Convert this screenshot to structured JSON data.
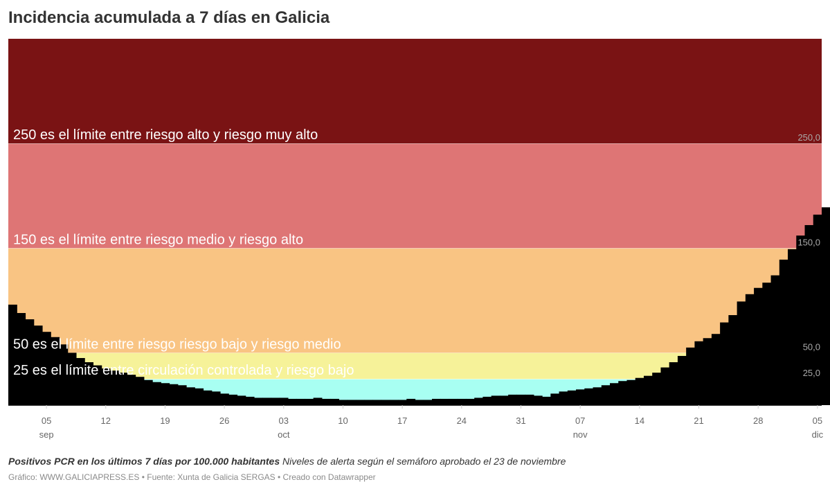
{
  "title": "Incidencia acumulada a 7 días en Galicia",
  "footer": {
    "description_bold": "Positivos PCR en los últimos 7 días por 100.000 habitantes",
    "description_rest": "Niveles de alerta según el semáforo aprobado el 23 de noviembre",
    "credits": "Gráfico: WWW.GALICIAPRESS.ES • Fuente: Xunta de Galicia SERGAS • Creado con Datawrapper"
  },
  "chart_data": {
    "type": "area",
    "title": "Incidencia acumulada a 7 días en Galicia",
    "xlabel": "",
    "ylabel": "",
    "ylim": [
      0,
      350
    ],
    "grid": false,
    "bands": [
      {
        "from": 0,
        "to": 25,
        "color": "#a8fff2",
        "label": "25 es el límite entre circulación controlada y riesgo bajo",
        "tick": "25,0"
      },
      {
        "from": 25,
        "to": 50,
        "color": "#f6f299",
        "label": "50 es el límite entre riesgo riesgo bajo y riesgo medio",
        "tick": "50,0"
      },
      {
        "from": 50,
        "to": 150,
        "color": "#f9c483",
        "label": "150 es el límite entre riesgo medio y riesgo alto",
        "tick": "150,0"
      },
      {
        "from": 150,
        "to": 250,
        "color": "#de7575",
        "label": "250 es el límite entre riesgo alto y riesgo muy alto",
        "tick": "250,0"
      },
      {
        "from": 250,
        "to": 350,
        "color": "#7a1314",
        "label": "",
        "tick": ""
      }
    ],
    "x_ticks": [
      {
        "day": 5,
        "label": "05",
        "sub": "sep"
      },
      {
        "day": 12,
        "label": "12",
        "sub": ""
      },
      {
        "day": 19,
        "label": "19",
        "sub": ""
      },
      {
        "day": 26,
        "label": "26",
        "sub": ""
      },
      {
        "day": 33,
        "label": "03",
        "sub": "oct"
      },
      {
        "day": 40,
        "label": "10",
        "sub": ""
      },
      {
        "day": 47,
        "label": "17",
        "sub": ""
      },
      {
        "day": 54,
        "label": "24",
        "sub": ""
      },
      {
        "day": 61,
        "label": "31",
        "sub": ""
      },
      {
        "day": 68,
        "label": "07",
        "sub": "nov"
      },
      {
        "day": 75,
        "label": "14",
        "sub": ""
      },
      {
        "day": 82,
        "label": "21",
        "sub": ""
      },
      {
        "day": 89,
        "label": "28",
        "sub": ""
      },
      {
        "day": 96,
        "label": "05",
        "sub": "dic"
      }
    ],
    "x_start_day": 1,
    "x_end_day": 97,
    "values": [
      96,
      88,
      82,
      76,
      70,
      65,
      58,
      50,
      45,
      41,
      38,
      35,
      33,
      31,
      29,
      27,
      24,
      22,
      21,
      20,
      19,
      17,
      16,
      14,
      13,
      11,
      10,
      9,
      8,
      7,
      7,
      7,
      7,
      6,
      6,
      6,
      7,
      6,
      6,
      5,
      5,
      5,
      5,
      5,
      5,
      5,
      5,
      6,
      5,
      5,
      6,
      6,
      6,
      6,
      6,
      7,
      8,
      9,
      9,
      10,
      10,
      10,
      9,
      8,
      11,
      13,
      14,
      15,
      16,
      17,
      19,
      21,
      23,
      24,
      26,
      28,
      31,
      36,
      41,
      47,
      55,
      61,
      64,
      68,
      79,
      86,
      99,
      106,
      112,
      117,
      124,
      139,
      149,
      162,
      172,
      182,
      189
    ]
  }
}
